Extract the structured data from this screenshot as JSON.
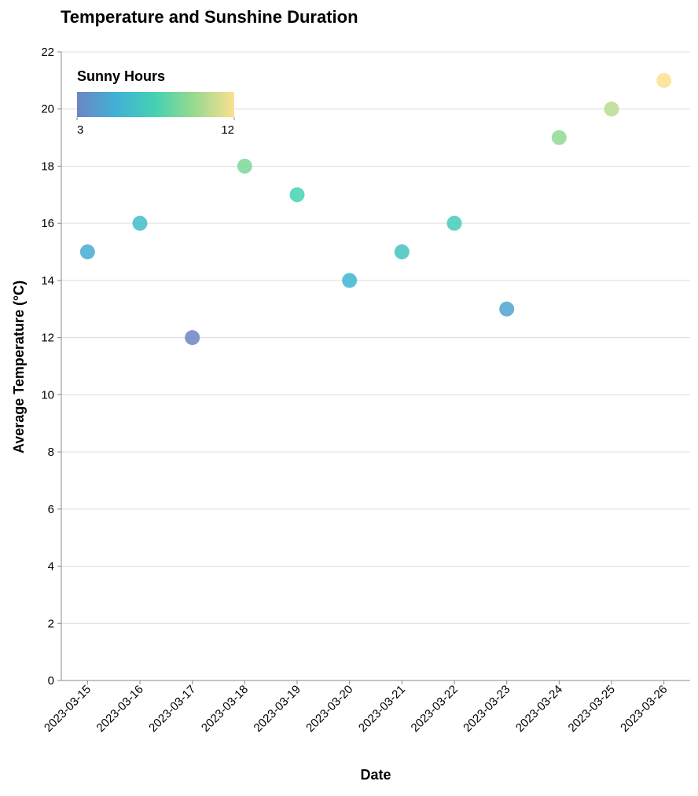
{
  "chart_data": {
    "type": "scatter",
    "title": "Temperature and Sunshine Duration",
    "xlabel": "Date",
    "ylabel": "Average Temperature (°C)",
    "ylim": [
      0,
      22
    ],
    "yticks": [
      0,
      2,
      4,
      6,
      8,
      10,
      12,
      14,
      16,
      18,
      20,
      22
    ],
    "grid": true,
    "legend": {
      "title": "Sunny Hours",
      "min_label": "3",
      "max_label": "12",
      "min": 3,
      "max": 12,
      "placement": "top-left",
      "colors": [
        "#6c86c4",
        "#41b1d6",
        "#45d2b0",
        "#9ad98f",
        "#fbe18f"
      ]
    },
    "points": [
      {
        "date": "2023-03-15",
        "temperature": 15,
        "sunny_hours": 5
      },
      {
        "date": "2023-03-16",
        "temperature": 16,
        "sunny_hours": 6
      },
      {
        "date": "2023-03-17",
        "temperature": 12,
        "sunny_hours": 3
      },
      {
        "date": "2023-03-18",
        "temperature": 18,
        "sunny_hours": 9
      },
      {
        "date": "2023-03-19",
        "temperature": 17,
        "sunny_hours": 7.5
      },
      {
        "date": "2023-03-20",
        "temperature": 14,
        "sunny_hours": 5.5
      },
      {
        "date": "2023-03-21",
        "temperature": 15,
        "sunny_hours": 6.5
      },
      {
        "date": "2023-03-22",
        "temperature": 16,
        "sunny_hours": 7
      },
      {
        "date": "2023-03-23",
        "temperature": 13,
        "sunny_hours": 4.5
      },
      {
        "date": "2023-03-24",
        "temperature": 19,
        "sunny_hours": 9.5
      },
      {
        "date": "2023-03-25",
        "temperature": 20,
        "sunny_hours": 10.5
      },
      {
        "date": "2023-03-26",
        "temperature": 21,
        "sunny_hours": 12
      }
    ]
  }
}
